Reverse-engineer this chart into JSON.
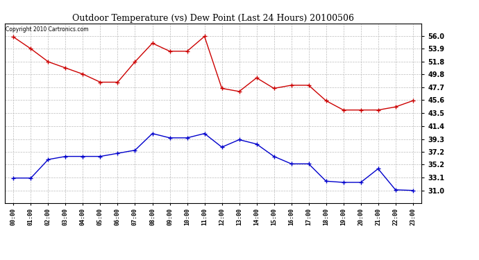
{
  "title": "Outdoor Temperature (vs) Dew Point (Last 24 Hours) 20100506",
  "copyright": "Copyright 2010 Cartronics.com",
  "hours": [
    "00:00",
    "01:00",
    "02:00",
    "03:00",
    "04:00",
    "05:00",
    "06:00",
    "07:00",
    "08:00",
    "09:00",
    "10:00",
    "11:00",
    "12:00",
    "13:00",
    "14:00",
    "15:00",
    "16:00",
    "17:00",
    "18:00",
    "19:00",
    "20:00",
    "21:00",
    "22:00",
    "23:00"
  ],
  "temp": [
    55.8,
    53.9,
    51.8,
    50.8,
    49.8,
    48.5,
    48.5,
    51.8,
    54.8,
    53.5,
    53.5,
    55.9,
    47.5,
    47.0,
    49.2,
    47.5,
    48.0,
    48.0,
    45.5,
    44.0,
    44.0,
    44.0,
    44.5,
    45.5
  ],
  "dew": [
    33.0,
    33.0,
    36.0,
    36.5,
    36.5,
    36.5,
    37.0,
    37.5,
    40.2,
    39.5,
    39.5,
    40.2,
    38.0,
    39.2,
    38.5,
    36.5,
    35.3,
    35.3,
    32.5,
    32.3,
    32.3,
    34.5,
    31.1,
    31.0
  ],
  "temp_color": "#cc0000",
  "dew_color": "#0000cc",
  "bg_color": "#ffffff",
  "grid_color": "#bbbbbb",
  "ymin": 29.0,
  "ymax": 58.0,
  "yticks": [
    31.0,
    33.1,
    35.2,
    37.2,
    39.3,
    41.4,
    43.5,
    45.6,
    47.7,
    49.8,
    51.8,
    53.9,
    56.0
  ]
}
